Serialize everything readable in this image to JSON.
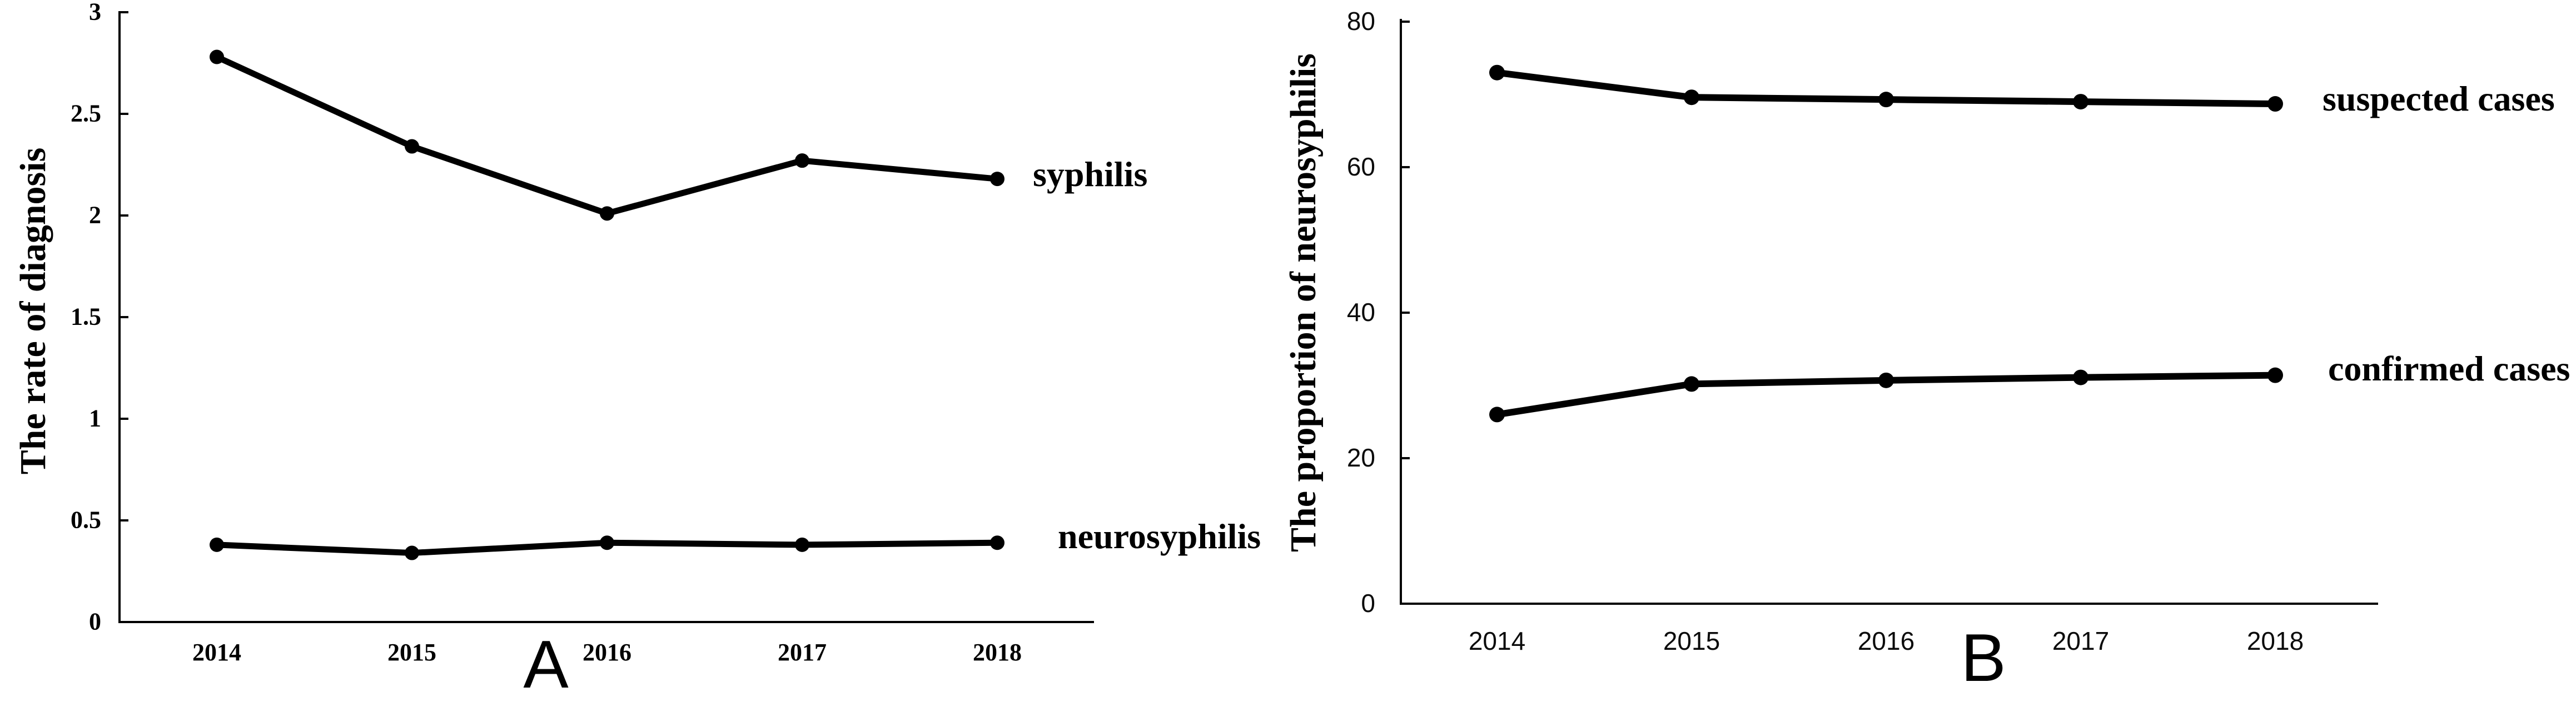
{
  "figure": {
    "background": "#ffffff",
    "line_color": "#000000",
    "marker": "filled-circle"
  },
  "chart_data": [
    {
      "type": "line",
      "panel": "A",
      "panel_letter": "A",
      "ylabel": "The rate of diagnosis",
      "xlabel": "",
      "categories": [
        "2014",
        "2015",
        "2016",
        "2017",
        "2018"
      ],
      "series": [
        {
          "name": "syphilis",
          "values": [
            2.78,
            2.34,
            2.01,
            2.27,
            2.18
          ]
        },
        {
          "name": "neurosyphilis",
          "values": [
            0.38,
            0.34,
            0.39,
            0.38,
            0.39
          ]
        }
      ],
      "ylim": [
        0,
        3
      ],
      "y_ticks": [
        3,
        2.5,
        2,
        1.5,
        1,
        0.5,
        0
      ],
      "grid": false,
      "legend_position": "inline-right-of-lines",
      "tick_direction": "in"
    },
    {
      "type": "line",
      "panel": "B",
      "panel_letter": "B",
      "ylabel": "The proportion of neurosyphilis",
      "xlabel": "",
      "categories": [
        "2014",
        "2015",
        "2016",
        "2017",
        "2018"
      ],
      "series": [
        {
          "name": "suspected cases",
          "values": [
            73.0,
            69.6,
            69.3,
            69.0,
            68.7
          ]
        },
        {
          "name": "confirmed cases",
          "values": [
            26.0,
            30.2,
            30.7,
            31.1,
            31.4
          ]
        }
      ],
      "ylim": [
        0,
        80
      ],
      "y_ticks": [
        80,
        60,
        40,
        20,
        0
      ],
      "grid": false,
      "legend_position": "inline-right-of-lines",
      "tick_direction": "in"
    }
  ]
}
